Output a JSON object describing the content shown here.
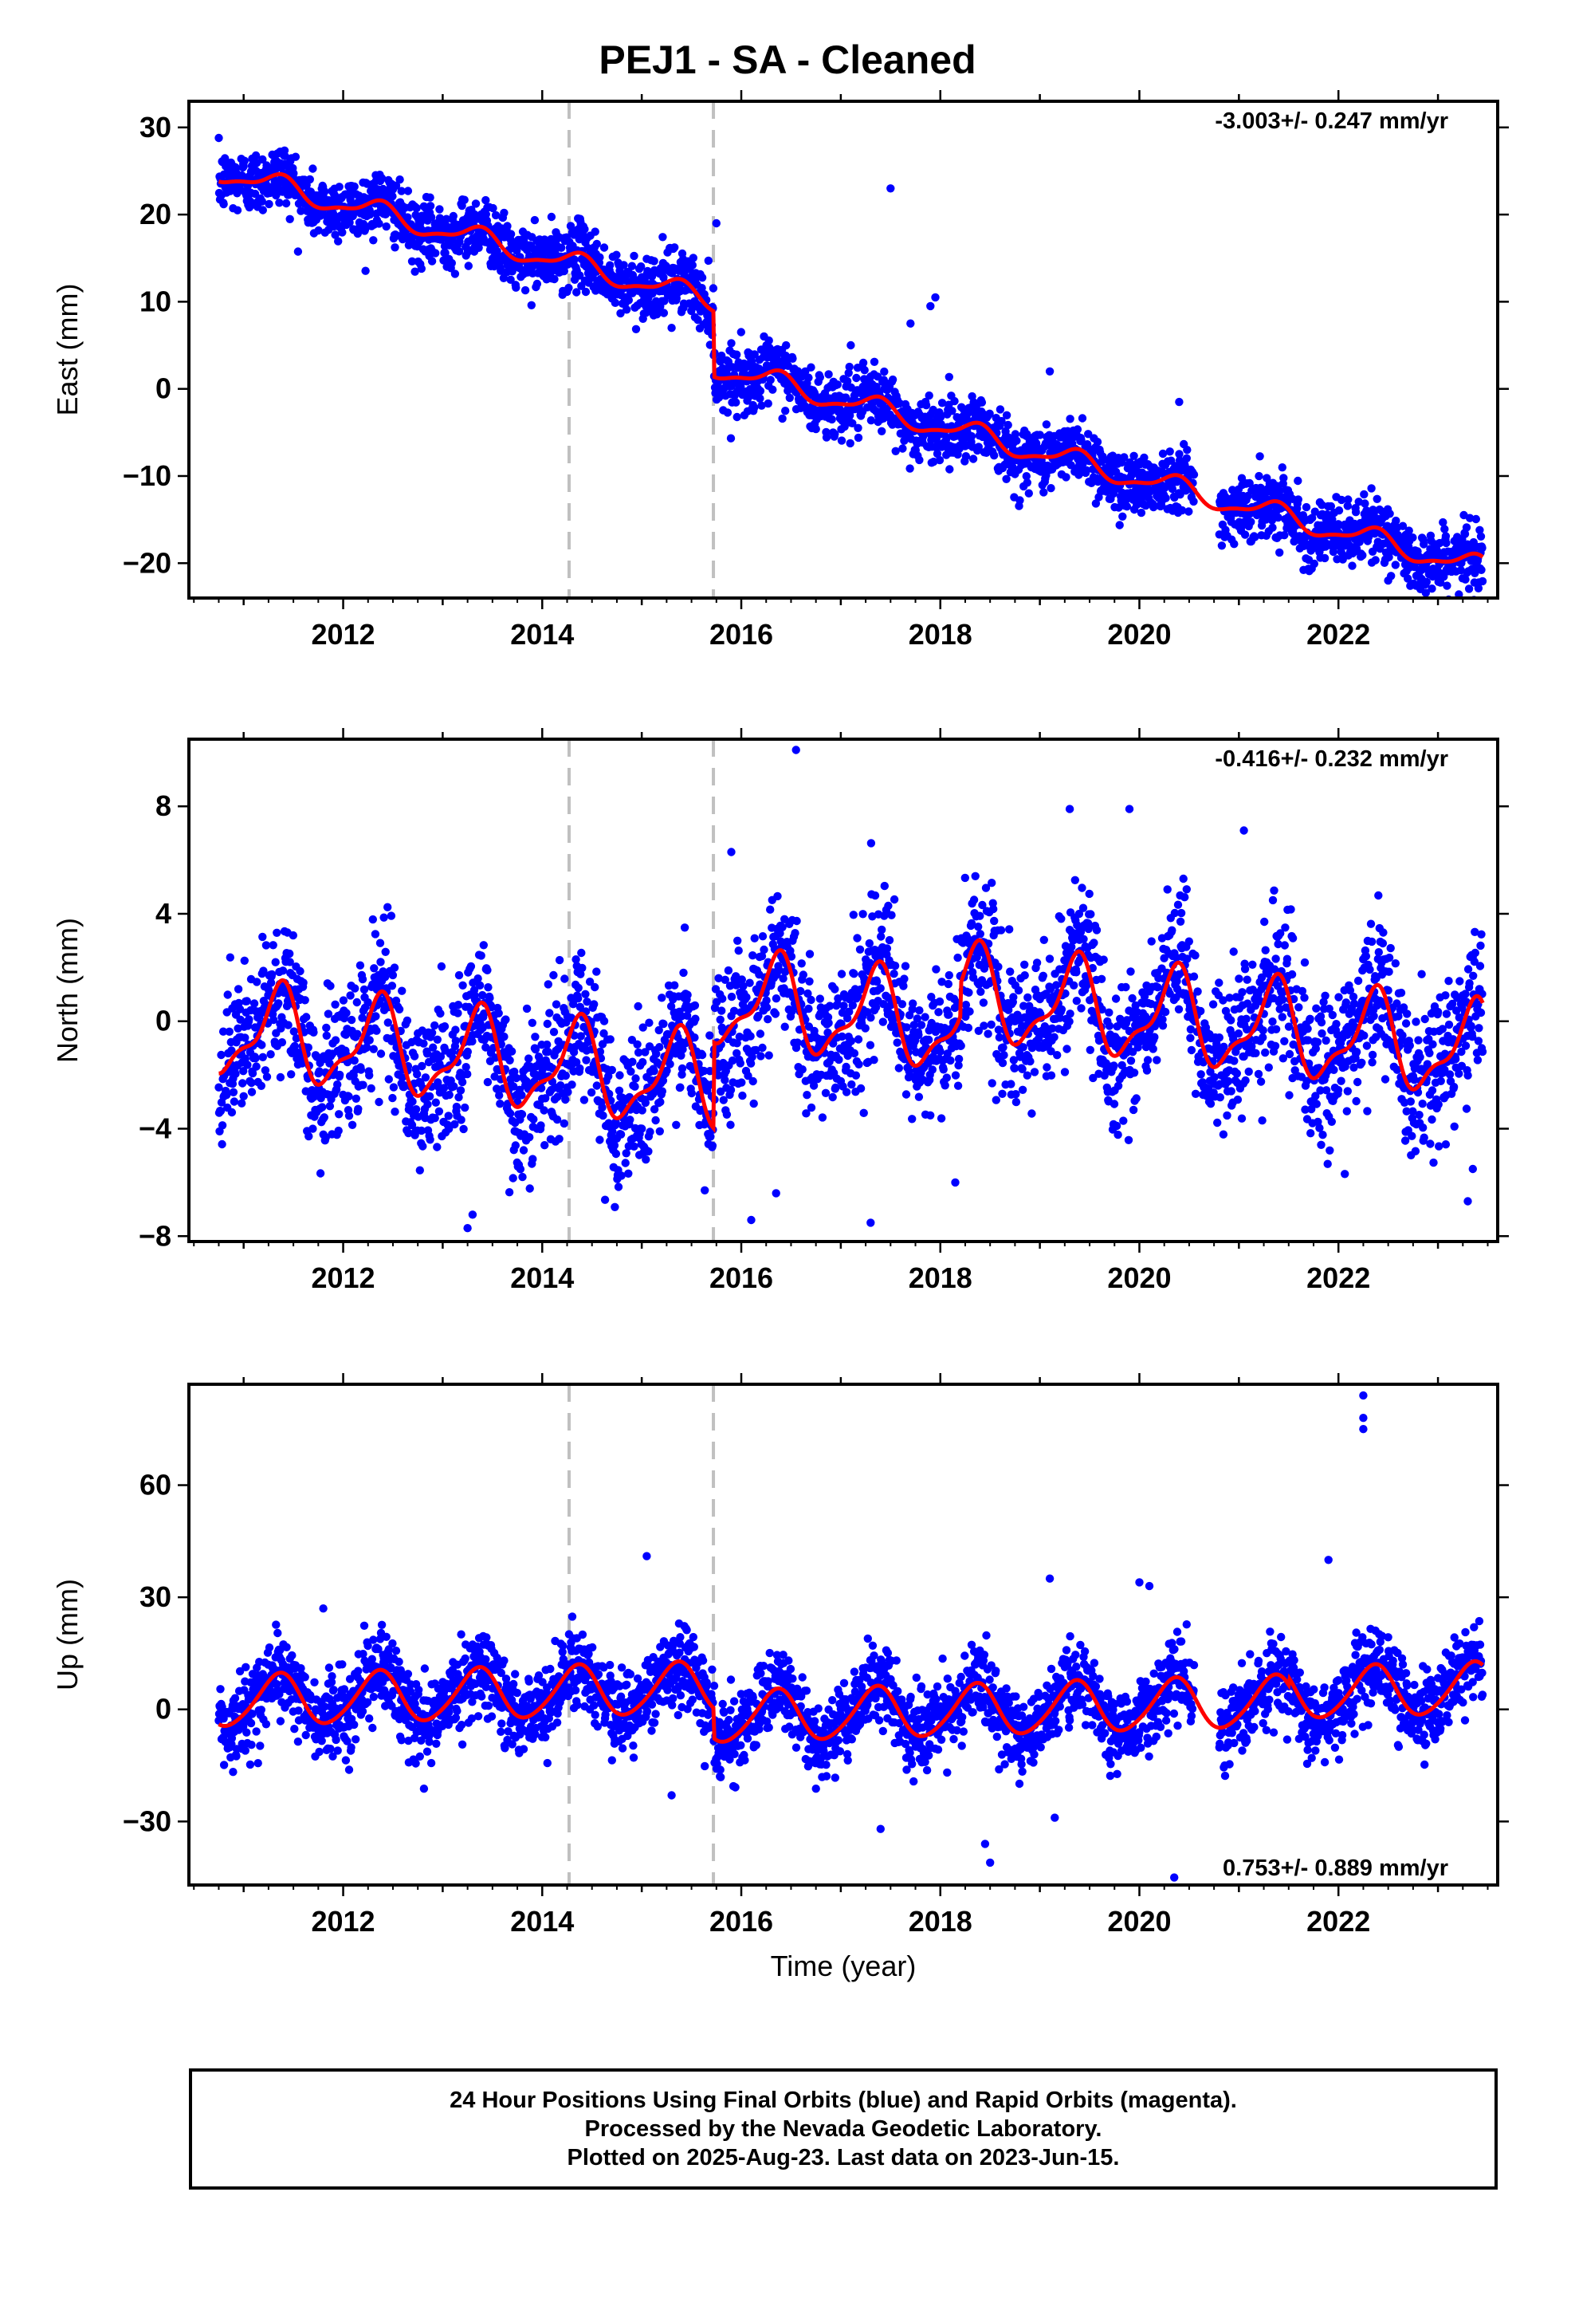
{
  "title": "PEJ1  - SA - Cleaned",
  "footer": {
    "line1": "24 Hour Positions Using Final Orbits (blue) and Rapid Orbits (magenta).",
    "line2": "Processed by the Nevada Geodetic Laboratory.",
    "line3": "Plotted on 2025-Aug-23. Last data on 2023-Jun-15."
  },
  "colors": {
    "data": "#0000ff",
    "fit": "#ff0000",
    "breaks": "#c0c0c0",
    "frame": "#000000"
  },
  "chart_data": [
    {
      "type": "scatter",
      "panel": "east",
      "ylabel": "East (mm)",
      "xlabel": "",
      "xlim": [
        2010.45,
        2023.6
      ],
      "ylim": [
        -24,
        33
      ],
      "xticks": [
        2012,
        2014,
        2016,
        2018,
        2020,
        2022
      ],
      "yticks": [
        -20,
        -10,
        0,
        10,
        20,
        30
      ],
      "rate_label": "-3.003+/- 0.247 mm/yr",
      "rate_position": "top-right",
      "break_lines": [
        2014.27,
        2015.72
      ],
      "data_span": [
        2010.75,
        2023.45
      ],
      "trend": {
        "start": 25.0,
        "slope": -3.003,
        "offsets": [
          {
            "t": 2015.72,
            "dy": -7.5
          }
        ],
        "annual_amp": 1.2,
        "semiannual_amp": 0.4,
        "noise": 1.8
      },
      "outliers": [
        [
          2017.5,
          23
        ],
        [
          2015.75,
          19
        ],
        [
          2017.95,
          10.5
        ],
        [
          2017.9,
          9.5
        ],
        [
          2017.7,
          7.5
        ],
        [
          2017.1,
          5
        ],
        [
          2019.1,
          2
        ],
        [
          2020.4,
          -1.5
        ],
        [
          2022.5,
          -22
        ],
        [
          2015.3,
          7
        ],
        [
          2016.2,
          4.5
        ]
      ]
    },
    {
      "type": "scatter",
      "panel": "north",
      "ylabel": "North (mm)",
      "xlabel": "",
      "xlim": [
        2010.45,
        2023.6
      ],
      "ylim": [
        -8.2,
        10.5
      ],
      "xticks": [
        2012,
        2014,
        2016,
        2018,
        2020,
        2022
      ],
      "yticks": [
        -8,
        -4,
        0,
        4,
        8
      ],
      "rate_label": "-0.416+/- 0.232 mm/yr",
      "rate_position": "top-right",
      "break_lines": [
        2014.27,
        2015.72
      ],
      "data_span": [
        2010.75,
        2023.45
      ],
      "trend": {
        "start": -0.3,
        "slope": -0.416,
        "offsets": [
          {
            "t": 2015.72,
            "dy": 3.2
          },
          {
            "t": 2018.2,
            "dy": 1.2
          }
        ],
        "annual_amp": 1.6,
        "semiannual_amp": 0.6,
        "noise": 1.35
      },
      "outliers": [
        [
          2016.55,
          10.1
        ],
        [
          2013.25,
          -7.7
        ],
        [
          2013.3,
          -7.2
        ],
        [
          2016.1,
          -7.4
        ],
        [
          2017.3,
          -7.5
        ],
        [
          2016.35,
          -6.4
        ],
        [
          2018.15,
          -6.0
        ],
        [
          2019.3,
          7.9
        ],
        [
          2019.9,
          7.9
        ],
        [
          2021.05,
          7.1
        ],
        [
          2015.9,
          6.3
        ],
        [
          2023.3,
          -6.7
        ],
        [
          2023.35,
          -5.5
        ]
      ]
    },
    {
      "type": "scatter",
      "panel": "up",
      "ylabel": "Up (mm)",
      "xlabel": "Time (year)",
      "xlim": [
        2010.45,
        2023.6
      ],
      "ylim": [
        -47,
        87
      ],
      "xticks": [
        2012,
        2014,
        2016,
        2018,
        2020,
        2022
      ],
      "yticks": [
        -30,
        0,
        30,
        60
      ],
      "rate_label": "0.753+/- 0.889 mm/yr",
      "rate_position": "bottom-right",
      "break_lines": [
        2014.27,
        2015.72
      ],
      "data_span": [
        2010.75,
        2023.45
      ],
      "trend": {
        "start": 2.0,
        "slope": 0.753,
        "offsets": [
          {
            "t": 2015.72,
            "dy": -8.0
          },
          {
            "t": 2021.5,
            "dy": 2.0
          }
        ],
        "annual_amp": 6.8,
        "semiannual_amp": 0.8,
        "noise": 5.2
      },
      "outliers": [
        [
          2022.25,
          84
        ],
        [
          2022.25,
          78
        ],
        [
          2022.25,
          75
        ],
        [
          2021.9,
          40
        ],
        [
          2015.05,
          41
        ],
        [
          2019.1,
          35
        ],
        [
          2020,
          34
        ],
        [
          2020.1,
          33
        ],
        [
          2018.5,
          -41
        ],
        [
          2018.45,
          -36
        ],
        [
          2020.35,
          -45
        ],
        [
          2019.15,
          -29
        ],
        [
          2017.4,
          -32
        ],
        [
          2015.3,
          -23
        ],
        [
          2011.8,
          27
        ]
      ]
    }
  ]
}
